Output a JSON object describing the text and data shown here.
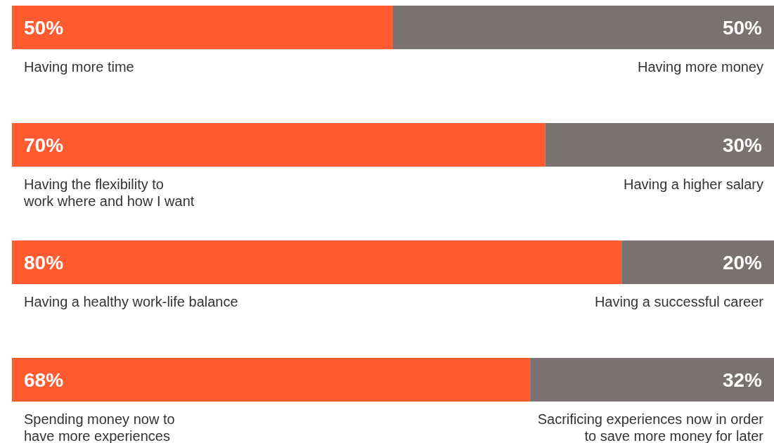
{
  "chart_data": {
    "type": "bar",
    "orientation": "horizontal",
    "stacked": true,
    "xlim": [
      0,
      100
    ],
    "categories": [
      "Having more time",
      "Having the flexibility to\nwork where and how I want",
      "Having a healthy work-life balance",
      "Spending money now to\nhave more experiences"
    ],
    "annotations": [
      "Having more money",
      "Having a higher salary",
      "Having a successful career",
      "Sacrificing experiences now in order\nto save more money for later"
    ],
    "series": [
      {
        "color": "#ff5a30",
        "values": [
          50,
          70,
          80,
          68
        ],
        "value_labels": [
          "50%",
          "70%",
          "80%",
          "68%"
        ]
      },
      {
        "color": "#7a7271",
        "values": [
          50,
          30,
          20,
          32
        ],
        "value_labels": [
          "50%",
          "30%",
          "20%",
          "32%"
        ]
      }
    ]
  }
}
